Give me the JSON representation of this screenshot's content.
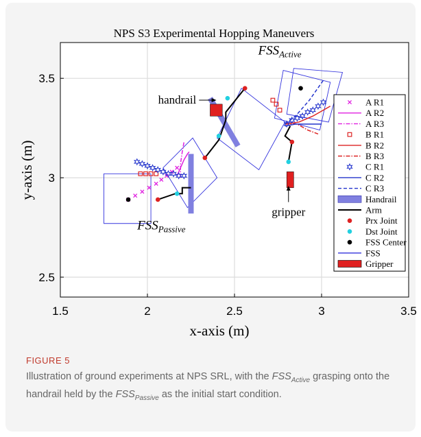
{
  "figure": {
    "label": "FIGURE 5",
    "caption_parts": [
      {
        "text": "Illustration of ground experiments at NPS SRL, with the "
      },
      {
        "text": "FSS",
        "italic": true
      },
      {
        "text": "Active",
        "italic": true,
        "sub": true
      },
      {
        "text": " grasping onto the handrail held by the "
      },
      {
        "text": "FSS",
        "italic": true
      },
      {
        "text": "Passive",
        "italic": true,
        "sub": true
      },
      {
        "text": " as the initial start condition."
      }
    ]
  },
  "chart_data": {
    "type": "scatter",
    "title": "NPS S3 Experimental Hopping Maneuvers",
    "xlabel": "x-axis (m)",
    "ylabel": "y-axis (m)",
    "xlim": [
      1.5,
      3.5
    ],
    "ylim": [
      2.4,
      3.68
    ],
    "xticks": [
      1.5,
      2,
      2.5,
      3,
      3.5
    ],
    "xtick_labels": [
      "1.5",
      "2",
      "2.5",
      "3",
      "3.5"
    ],
    "yticks": [
      2.5,
      3,
      3.5
    ],
    "ytick_labels": [
      "2.5",
      "3",
      "3.5"
    ],
    "grid": true,
    "legend_position": "right",
    "annotations": [
      {
        "text": "handrail",
        "at": [
          2.32,
          3.39
        ],
        "arrow_to": [
          2.4,
          3.39
        ]
      },
      {
        "text": "gripper",
        "at": [
          2.81,
          2.85
        ],
        "arrow_to": [
          2.81,
          2.96
        ]
      },
      {
        "base": "FSS",
        "sub": "Active",
        "at": [
          2.76,
          3.62
        ]
      },
      {
        "base": "FSS",
        "sub": "Passive",
        "at": [
          2.08,
          2.74
        ]
      }
    ],
    "series": [
      {
        "name": "A R1",
        "color": "#e020e0",
        "marker": "x",
        "line": "none",
        "x": [
          1.89,
          1.93,
          1.97,
          2.01,
          2.05,
          2.08,
          2.11,
          2.14,
          2.17
        ],
        "y": [
          2.89,
          2.91,
          2.93,
          2.95,
          2.97,
          2.99,
          3.01,
          3.03,
          3.05
        ]
      },
      {
        "name": "A R2",
        "color": "#e020e0",
        "marker": "none",
        "line": "solid",
        "x": [
          2.17,
          2.19,
          2.21,
          2.23,
          2.24
        ],
        "y": [
          3.01,
          3.05,
          3.09,
          3.12,
          3.13
        ]
      },
      {
        "name": "A R3",
        "color": "#e020e0",
        "marker": "none",
        "line": "dashdot",
        "x": [
          2.19,
          2.19,
          2.2,
          2.21
        ],
        "y": [
          3.0,
          3.07,
          3.13,
          3.18
        ]
      },
      {
        "name": "B R1",
        "color": "#dd2222",
        "marker": "square",
        "line": "none",
        "x": [
          1.96,
          1.99,
          2.02,
          2.05,
          2.72,
          2.74,
          2.76
        ],
        "y": [
          3.02,
          3.02,
          3.02,
          3.02,
          3.39,
          3.37,
          3.34
        ]
      },
      {
        "name": "B R2",
        "color": "#dd2222",
        "marker": "none",
        "line": "solid",
        "x": [
          2.79,
          2.87,
          2.95,
          3.05
        ],
        "y": [
          3.27,
          3.28,
          3.31,
          3.36
        ]
      },
      {
        "name": "B R3",
        "color": "#dd2222",
        "marker": "none",
        "line": "dashdot",
        "x": [
          2.79,
          2.86,
          2.92,
          2.98
        ],
        "y": [
          3.27,
          3.27,
          3.24,
          3.22
        ]
      },
      {
        "name": "C R1",
        "color": "#2233cc",
        "marker": "star",
        "line": "none",
        "x": [
          1.94,
          1.97,
          2.0,
          2.03,
          2.06,
          2.09,
          2.12,
          2.15,
          2.18,
          2.21,
          2.8,
          2.83,
          2.86,
          2.89,
          2.92,
          2.95,
          2.98,
          3.01
        ],
        "y": [
          3.08,
          3.07,
          3.06,
          3.05,
          3.04,
          3.03,
          3.02,
          3.02,
          3.01,
          3.01,
          3.27,
          3.29,
          3.3,
          3.31,
          3.33,
          3.34,
          3.36,
          3.38
        ]
      },
      {
        "name": "C R2",
        "color": "#2233cc",
        "marker": "none",
        "line": "solid",
        "x": [
          2.79,
          2.85,
          2.92,
          3.0
        ],
        "y": [
          3.26,
          3.27,
          3.27,
          3.27
        ]
      },
      {
        "name": "C R3",
        "color": "#2233cc",
        "marker": "none",
        "line": "dashed",
        "x": [
          2.79,
          2.85,
          2.93,
          3.01
        ],
        "y": [
          3.27,
          3.31,
          3.39,
          3.49
        ]
      },
      {
        "name": "Handrail",
        "color": "#8080e0",
        "marker": "patch",
        "line": "none",
        "segments": [
          [
            [
              2.25,
              2.82
            ],
            [
              2.25,
              3.12
            ]
          ],
          [
            [
              2.36,
              3.4
            ],
            [
              2.52,
              3.16
            ]
          ]
        ]
      },
      {
        "name": "Arm",
        "color": "#000000",
        "marker": "none",
        "line": "solid",
        "paths": [
          [
            [
              2.06,
              2.89
            ],
            [
              2.16,
              2.92
            ],
            [
              2.2,
              2.92
            ],
            [
              2.2,
              2.95
            ],
            [
              2.25,
              2.95
            ]
          ],
          [
            [
              2.33,
              3.1
            ],
            [
              2.41,
              3.19
            ],
            [
              2.45,
              3.29
            ],
            [
              2.45,
              3.33
            ],
            [
              2.56,
              3.45
            ]
          ],
          [
            [
              2.81,
              3.08
            ],
            [
              2.83,
              3.18
            ],
            [
              2.79,
              3.21
            ],
            [
              2.82,
              3.26
            ]
          ]
        ]
      },
      {
        "name": "Prx Joint",
        "color": "#dd2222",
        "marker": "dot",
        "line": "none",
        "x": [
          2.06,
          2.33,
          2.56,
          2.83
        ],
        "y": [
          2.89,
          3.1,
          3.45,
          3.18
        ]
      },
      {
        "name": "Dst Joint",
        "color": "#22d0e0",
        "marker": "dot",
        "line": "none",
        "x": [
          2.17,
          2.41,
          2.46,
          2.81
        ],
        "y": [
          2.92,
          3.21,
          3.4,
          3.08
        ]
      },
      {
        "name": "FSS Center",
        "color": "#000000",
        "marker": "dot",
        "line": "none",
        "x": [
          1.89,
          2.88
        ],
        "y": [
          2.89,
          3.45
        ]
      },
      {
        "name": "FSS",
        "color": "#3333dd",
        "marker": "none",
        "line": "solid",
        "polygons": [
          [
            [
              1.75,
              2.77
            ],
            [
              2.02,
              2.77
            ],
            [
              2.02,
              3.02
            ],
            [
              1.75,
              3.02
            ]
          ],
          [
            [
              2.09,
              3.05
            ],
            [
              2.26,
              3.2
            ],
            [
              2.4,
              3.0
            ],
            [
              2.23,
              2.85
            ]
          ],
          [
            [
              2.4,
              3.2
            ],
            [
              2.54,
              3.45
            ],
            [
              2.79,
              3.28
            ],
            [
              2.64,
              3.04
            ]
          ],
          [
            [
              2.78,
              3.54
            ],
            [
              3.05,
              3.48
            ],
            [
              2.99,
              3.24
            ],
            [
              2.73,
              3.3
            ]
          ],
          [
            [
              2.84,
              3.55
            ],
            [
              3.12,
              3.53
            ],
            [
              3.04,
              3.28
            ],
            [
              2.8,
              3.32
            ]
          ]
        ]
      },
      {
        "name": "Gripper",
        "color": "#e02020",
        "marker": "patch",
        "line": "none",
        "rects": [
          [
            [
              2.36,
              3.37
            ],
            [
              2.43,
              3.31
            ]
          ],
          [
            [
              2.8,
              3.03
            ],
            [
              2.84,
              2.95
            ]
          ]
        ]
      }
    ]
  }
}
